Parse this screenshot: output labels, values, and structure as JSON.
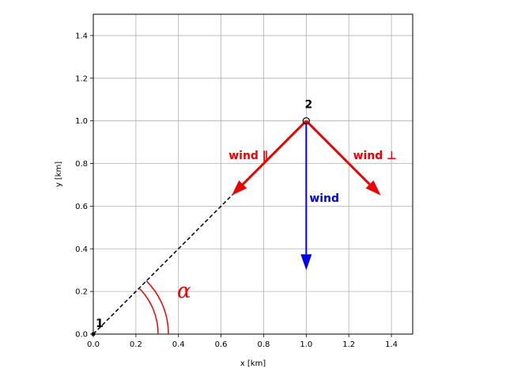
{
  "chart_data": {
    "type": "vector-diagram",
    "xlabel": "x [km]",
    "ylabel": "y [km]",
    "xlim": [
      0.0,
      1.5
    ],
    "ylim": [
      0.0,
      1.5
    ],
    "grid": true,
    "x_ticks": [
      "0.0",
      "0.2",
      "0.4",
      "0.6",
      "0.8",
      "1.0",
      "1.2",
      "1.4"
    ],
    "y_ticks": [
      "0.0",
      "0.2",
      "0.4",
      "0.6",
      "0.8",
      "1.0",
      "1.2",
      "1.4"
    ],
    "x_tick_values": [
      0.0,
      0.2,
      0.4,
      0.6,
      0.8,
      1.0,
      1.2,
      1.4
    ],
    "y_tick_values": [
      0.0,
      0.2,
      0.4,
      0.6,
      0.8,
      1.0,
      1.2,
      1.4
    ],
    "points": [
      {
        "label": "1",
        "x": 0.0,
        "y": 0.0
      },
      {
        "label": "2",
        "x": 1.0,
        "y": 1.0
      }
    ],
    "line": {
      "from": [
        0.0,
        0.0
      ],
      "to": [
        1.0,
        1.0
      ],
      "style": "dashed",
      "color": "#000000"
    },
    "angle": {
      "label": "α",
      "color": "#ee0000",
      "from_deg": 0,
      "to_deg": 45
    },
    "arrows": [
      {
        "label": "wind",
        "from": [
          1.0,
          1.0
        ],
        "to": [
          1.0,
          0.3
        ],
        "color": "#0000ee"
      },
      {
        "label": "wind ∥",
        "from": [
          1.0,
          1.0
        ],
        "to": [
          0.65,
          0.65
        ],
        "color": "#ee0000"
      },
      {
        "label": "wind ⊥",
        "from": [
          1.0,
          1.0
        ],
        "to": [
          1.35,
          0.65
        ],
        "color": "#ee0000"
      }
    ]
  }
}
